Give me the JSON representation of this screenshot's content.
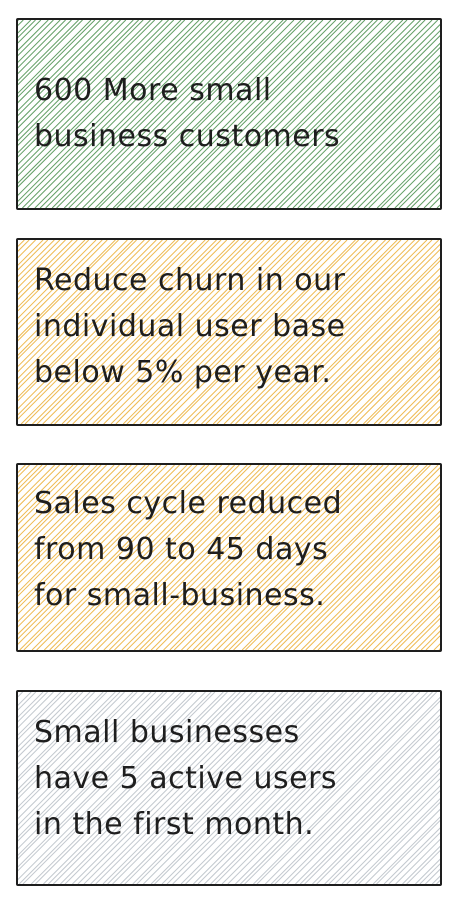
{
  "cards": [
    {
      "text": "600 More small\nbusiness customers",
      "fill": "#8bc34a",
      "stroke": "#2e7d32"
    },
    {
      "text": "Reduce churn in our\nindividual user base\nbelow 5% per year.",
      "fill": "#f4b942",
      "stroke": "#e8a317"
    },
    {
      "text": "Sales cycle reduced\nfrom 90 to 45 days\nfor small-business.",
      "fill": "#f4b942",
      "stroke": "#e8a317"
    },
    {
      "text": "Small businesses\nhave 5 active users\nin the first month.",
      "fill": "#ced4da",
      "stroke": "#adb5bd"
    }
  ]
}
